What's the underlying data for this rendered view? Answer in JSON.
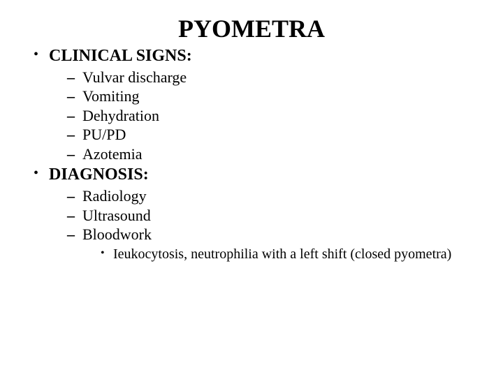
{
  "title": "PYOMETRA",
  "sections": [
    {
      "heading": "CLINICAL SIGNS:",
      "items": [
        {
          "text": "Vulvar discharge"
        },
        {
          "text": "Vomiting"
        },
        {
          "text": "Dehydration"
        },
        {
          "text": "PU/PD"
        },
        {
          "text": "Azotemia"
        }
      ]
    },
    {
      "heading": "DIAGNOSIS:",
      "items": [
        {
          "text": "Radiology"
        },
        {
          "text": "Ultrasound"
        },
        {
          "text": "Bloodwork",
          "subitems": [
            {
              "text": "Ieukocytosis, neutrophilia with a left shift (closed pyometra)"
            }
          ]
        }
      ]
    }
  ],
  "colors": {
    "background": "#ffffff",
    "text": "#000000"
  },
  "typography": {
    "family": "Times New Roman",
    "title_size_pt": 36,
    "heading_size_pt": 24,
    "item_size_pt": 22,
    "subitem_size_pt": 20
  }
}
